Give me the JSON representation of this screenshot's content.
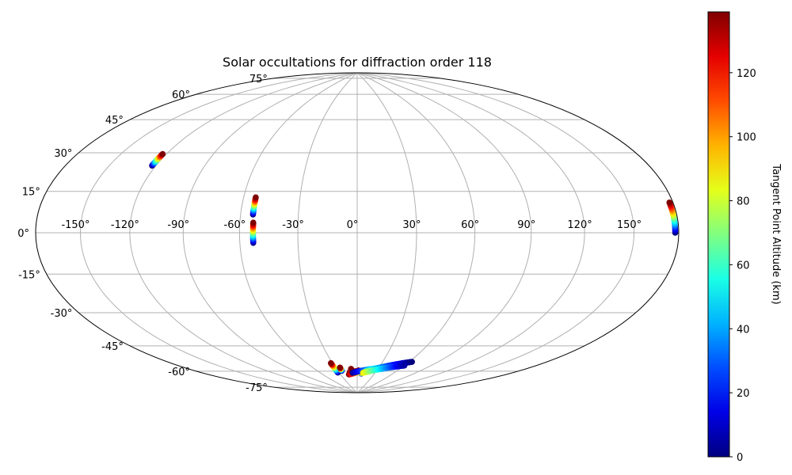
{
  "chart_data": {
    "type": "scatter",
    "projection": "hammer",
    "title": "Solar occultations for diffraction order 118",
    "grid": true,
    "x_ticks": [
      "-150°",
      "-120°",
      "-90°",
      "-60°",
      "-30°",
      "0°",
      "30°",
      "60°",
      "90°",
      "120°",
      "150°"
    ],
    "x_tick_values": [
      -150,
      -120,
      -90,
      -60,
      -30,
      0,
      30,
      60,
      90,
      120,
      150
    ],
    "y_ticks": [
      "75°",
      "60°",
      "45°",
      "30°",
      "15°",
      "0°",
      "-15°",
      "-30°",
      "-45°",
      "-60°",
      "-75°"
    ],
    "y_tick_values": [
      75,
      60,
      45,
      30,
      15,
      0,
      -15,
      -30,
      -45,
      -60,
      -75
    ],
    "colorbar": {
      "label": "Tangent Point Altitude (km)",
      "ticks": [
        "0",
        "20",
        "40",
        "60",
        "80",
        "100",
        "120"
      ],
      "tick_values": [
        0,
        20,
        40,
        60,
        80,
        100,
        120
      ],
      "range": [
        0,
        139
      ],
      "colormap": "jet"
    },
    "profiles": [
      {
        "lon": -122.5,
        "lat_bottom": 30,
        "lat_top": 35.5
      },
      {
        "lon": -53.5,
        "lat_bottom": 9,
        "lat_top": 17.5
      },
      {
        "lon": -53,
        "lat_bottom": -5,
        "lat_top": 5
      },
      {
        "lon": 177.5,
        "lat_bottom": 0,
        "lat_top": 11
      },
      {
        "lon": -32,
        "lat_bottom": -76,
        "lat_top": -70
      },
      {
        "lon": -24,
        "lat_bottom": -75,
        "lat_top": -73
      },
      {
        "lon": -12,
        "lat_bottom": -77,
        "lat_top": -76
      },
      {
        "lon": -9,
        "lat_bottom": -75.5,
        "lat_top": -74
      },
      {
        "lon": -3,
        "lat_bottom": -76.5,
        "lat_top": -75.5
      },
      {
        "lon": 2,
        "lat_bottom": -76,
        "lat_top": -75
      },
      {
        "lon": 7,
        "lat_bottom": -77,
        "lat_top": -76
      }
    ],
    "polar_tracks": [
      {
        "lon_start": -15,
        "lon_end": 36,
        "lat_start": -77.5,
        "lat_end": -73.5,
        "alt_start": 139,
        "alt_end": 0,
        "phase": 0
      },
      {
        "lon_start": -8,
        "lon_end": 54,
        "lat_start": -76.5,
        "lat_end": -71,
        "alt_start": 0,
        "alt_end": 100,
        "phase": 0.5
      },
      {
        "lon_start": 14,
        "lon_end": 63,
        "lat_start": -75.5,
        "lat_end": -68,
        "alt_start": 60,
        "alt_end": 0,
        "phase": 0.3
      },
      {
        "lon_start": 10,
        "lon_end": 60,
        "lat_start": -76.5,
        "lat_end": -70.5,
        "alt_start": 90,
        "alt_end": 5,
        "phase": 0.7
      }
    ]
  }
}
